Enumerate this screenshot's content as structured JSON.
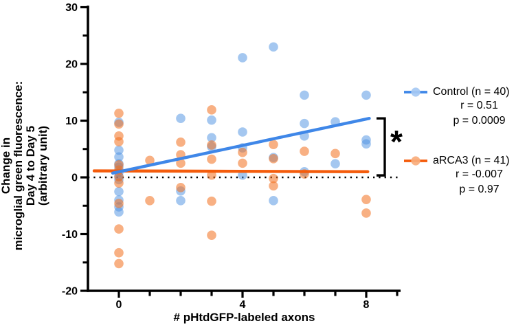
{
  "figure": {
    "x_axis_title": "# pHtdGFP-labeled axons",
    "y_axis_title_lines": [
      "Change in",
      "microglial green fluorescence:",
      "Day 4 to Day 5",
      "(arbitrary unit)"
    ],
    "significance_label": "*"
  },
  "legend": {
    "control": {
      "label": "Control (n = 40)",
      "r_text": "r = 0.51",
      "p_text": "p = 0.0009"
    },
    "arca3": {
      "label": "aRCA3 (n = 41)",
      "r_text": "r = -0.007",
      "p_text": "p = 0.97"
    }
  },
  "chart_data": {
    "type": "scatter",
    "title": "",
    "xlabel": "# pHtdGFP-labeled axons",
    "ylabel": "Change in microglial green fluorescence: Day 4 to Day 5 (arbitrary unit)",
    "xlim": [
      -1,
      9.1
    ],
    "ylim": [
      -20,
      30
    ],
    "x_ticks_all": [
      0,
      1,
      2,
      3,
      4,
      5,
      6,
      7,
      8,
      9
    ],
    "x_ticks_labeled": [
      0,
      4,
      8
    ],
    "x_tick_labels": [
      "0",
      "4",
      "8"
    ],
    "y_ticks_major": [
      30,
      20,
      10,
      0,
      -10,
      -20
    ],
    "y_tick_labels": [
      "30",
      "20",
      "10",
      "0",
      "-10",
      "-20"
    ],
    "y_ticks_minor": [
      25,
      15,
      5,
      -5,
      -15
    ],
    "grid": false,
    "zero_line": {
      "y": 0,
      "style": "dotted",
      "color": "#000000"
    },
    "legend_position": "right",
    "significance": {
      "label": "*",
      "bracket_from_y": 10.4,
      "bracket_to_y": 0.35
    },
    "series": [
      {
        "name": "Control (n = 40)",
        "r": 0.51,
        "p": 0.0009,
        "point_color": "#4a90e2",
        "point_opacity": 0.5,
        "line_color": "#3f87e8",
        "legend_marker_fill": "#a6c9f3",
        "trend": {
          "x1": -0.2,
          "y1": 0.75,
          "x2": 8.1,
          "y2": 10.4
        },
        "points": [
          [
            0,
            9.7
          ],
          [
            0,
            4.8
          ],
          [
            0,
            3.6
          ],
          [
            0,
            2.4
          ],
          [
            0,
            1.8
          ],
          [
            0,
            0.9
          ],
          [
            0,
            0.2
          ],
          [
            0,
            -0.4
          ],
          [
            0,
            -2.5
          ],
          [
            0,
            -4.0
          ],
          [
            0,
            -5.2
          ],
          [
            0,
            -6.1
          ],
          [
            2,
            10.4
          ],
          [
            2,
            -2.4
          ],
          [
            2,
            -4.1
          ],
          [
            3,
            10.1
          ],
          [
            3,
            7.0
          ],
          [
            3,
            5.4
          ],
          [
            4,
            21.1
          ],
          [
            4,
            8.0
          ],
          [
            4,
            5.2
          ],
          [
            4,
            0.4
          ],
          [
            5,
            23.0
          ],
          [
            5,
            3.5
          ],
          [
            5,
            -4.1
          ],
          [
            6,
            14.5
          ],
          [
            6,
            9.5
          ],
          [
            6,
            7.3
          ],
          [
            6,
            1.0
          ],
          [
            7,
            9.8
          ],
          [
            7,
            2.4
          ],
          [
            8,
            14.5
          ],
          [
            8,
            6.6
          ],
          [
            8,
            5.9
          ]
        ]
      },
      {
        "name": "aRCA3 (n = 41)",
        "r": -0.007,
        "p": 0.97,
        "point_color": "#f3701d",
        "point_opacity": 0.55,
        "line_color": "#f45c0c",
        "legend_marker_fill": "#f9ad7c",
        "trend": {
          "x1": -0.8,
          "y1": 1.15,
          "x2": 8.05,
          "y2": 1.0
        },
        "points": [
          [
            0,
            11.3
          ],
          [
            0,
            9.4
          ],
          [
            0,
            7.3
          ],
          [
            0,
            6.3
          ],
          [
            0,
            2.2
          ],
          [
            0,
            1.3
          ],
          [
            0,
            0.1
          ],
          [
            0,
            -1.0
          ],
          [
            0,
            -4.6
          ],
          [
            0,
            -9.1
          ],
          [
            0,
            -13.3
          ],
          [
            0,
            -15.2
          ],
          [
            1,
            3.0
          ],
          [
            1,
            -4.1
          ],
          [
            2,
            6.2
          ],
          [
            2,
            4.0
          ],
          [
            2,
            2.5
          ],
          [
            2,
            -1.8
          ],
          [
            3,
            11.9
          ],
          [
            3,
            5.7
          ],
          [
            3,
            3.2
          ],
          [
            3,
            0.4
          ],
          [
            3,
            -4.2
          ],
          [
            3,
            -10.2
          ],
          [
            4,
            4.4
          ],
          [
            4,
            2.5
          ],
          [
            5,
            5.8
          ],
          [
            5,
            3.3
          ],
          [
            5,
            -0.2
          ],
          [
            5,
            -1.5
          ],
          [
            6,
            4.6
          ],
          [
            6,
            0.6
          ],
          [
            7,
            4.2
          ],
          [
            8,
            -3.9
          ],
          [
            8,
            -6.3
          ]
        ]
      }
    ]
  }
}
